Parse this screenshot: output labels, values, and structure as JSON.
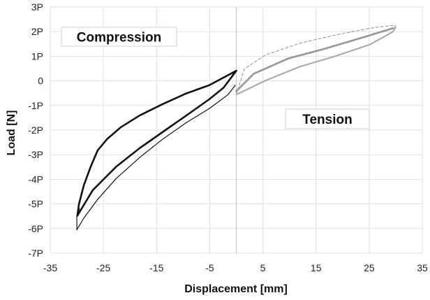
{
  "chart_data": {
    "type": "line",
    "xlabel": "Displacement [mm]",
    "ylabel": "Load [N]",
    "xlim": [
      -35,
      35
    ],
    "ylim": [
      -7,
      3
    ],
    "xticks": [
      -35,
      -25,
      -15,
      -5,
      5,
      15,
      25,
      35
    ],
    "xtick_labels": [
      "-35",
      "-25",
      "-15",
      "-5",
      "5",
      "15",
      "25",
      "35"
    ],
    "yticks": [
      3,
      2,
      1,
      0,
      -1,
      -2,
      -3,
      -4,
      -5,
      -6,
      -7
    ],
    "ytick_labels": [
      "3P",
      "2P",
      "1P",
      "0",
      "-1P",
      "-2P",
      "-3P",
      "-4P",
      "-5P",
      "-6P",
      "-7P"
    ],
    "grid": true,
    "zero_line_x": 0,
    "annotations": [
      {
        "text": "Compression",
        "x": -25,
        "y": 1.7
      },
      {
        "text": "Tension",
        "x": 14,
        "y": -1.7
      }
    ],
    "series": [
      {
        "style": "solid-thick",
        "color": "#111111",
        "x": [
          0,
          -5.1,
          -9.4,
          -13.8,
          -18.2,
          -21.7,
          -24.3,
          -26.1,
          -27.4,
          -28.7,
          -29.6,
          -29.9
        ],
        "y": [
          0.41,
          -0.18,
          -0.51,
          -0.94,
          -1.41,
          -1.88,
          -2.36,
          -2.83,
          -3.49,
          -4.25,
          -5.01,
          -5.48
        ]
      },
      {
        "style": "solid-thick",
        "color": "#111111",
        "x": [
          -29.9,
          -27.0,
          -22.6,
          -18.2,
          -13.8,
          -9.4,
          -5.1,
          -2.4,
          0
        ],
        "y": [
          -5.48,
          -4.44,
          -3.49,
          -2.74,
          -2.07,
          -1.41,
          -0.75,
          -0.28,
          0.41
        ]
      },
      {
        "style": "solid-thin",
        "color": "#111111",
        "x": [
          -0.2,
          -1.55,
          -5.1,
          -9.4,
          -13.8,
          -18.2,
          -22.6,
          -26.1,
          -28.7,
          -30.0,
          -30.0,
          -29.5
        ],
        "y": [
          -0.18,
          -0.56,
          -1.13,
          -1.7,
          -2.36,
          -3.12,
          -3.97,
          -4.82,
          -5.58,
          -6.05,
          -5.5,
          -5.2
        ]
      },
      {
        "style": "dashed-thin",
        "color": "#999999",
        "x": [
          0,
          1.5,
          5.5,
          12.0,
          18.6,
          25.2,
          29.8,
          30.0
        ],
        "y": [
          -0.56,
          0.48,
          1.05,
          1.53,
          1.86,
          2.14,
          2.26,
          2.1
        ]
      },
      {
        "style": "dashed-thick",
        "color": "#999999",
        "x": [
          0,
          3.3,
          9.8,
          16.4,
          23.0,
          29.5
        ],
        "y": [
          -0.42,
          0.29,
          0.91,
          1.29,
          1.71,
          2.14
        ]
      },
      {
        "style": "dashed-medium",
        "color": "#aaaaaa",
        "x": [
          0,
          5.5,
          12.0,
          18.6,
          25.2,
          29.5,
          30.0
        ],
        "y": [
          -0.56,
          0.01,
          0.58,
          1.0,
          1.48,
          2.0,
          2.2
        ]
      }
    ]
  }
}
